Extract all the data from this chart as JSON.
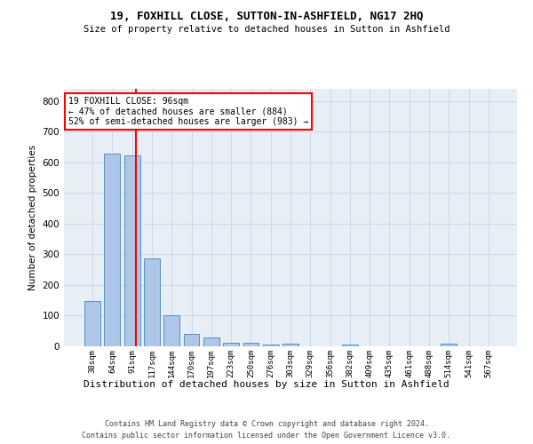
{
  "title1": "19, FOXHILL CLOSE, SUTTON-IN-ASHFIELD, NG17 2HQ",
  "title2": "Size of property relative to detached houses in Sutton in Ashfield",
  "xlabel": "Distribution of detached houses by size in Sutton in Ashfield",
  "ylabel": "Number of detached properties",
  "footer1": "Contains HM Land Registry data © Crown copyright and database right 2024.",
  "footer2": "Contains public sector information licensed under the Open Government Licence v3.0.",
  "annotation_title": "19 FOXHILL CLOSE: 96sqm",
  "annotation_line2": "← 47% of detached houses are smaller (884)",
  "annotation_line3": "52% of semi-detached houses are larger (983) →",
  "property_size": 96,
  "bar_color": "#aec6e8",
  "bar_edge_color": "#5a8fc2",
  "vline_color": "red",
  "categories": [
    "38sqm",
    "64sqm",
    "91sqm",
    "117sqm",
    "144sqm",
    "170sqm",
    "197sqm",
    "223sqm",
    "250sqm",
    "276sqm",
    "303sqm",
    "329sqm",
    "356sqm",
    "382sqm",
    "409sqm",
    "435sqm",
    "461sqm",
    "488sqm",
    "514sqm",
    "541sqm",
    "567sqm"
  ],
  "values": [
    148,
    630,
    623,
    287,
    100,
    42,
    30,
    11,
    12,
    7,
    8,
    0,
    0,
    5,
    0,
    0,
    0,
    0,
    8,
    0,
    0
  ],
  "ylim": [
    0,
    840
  ],
  "yticks": [
    0,
    100,
    200,
    300,
    400,
    500,
    600,
    700,
    800
  ],
  "grid_color": "#ccd9e8",
  "bg_color": "#e8eef5"
}
